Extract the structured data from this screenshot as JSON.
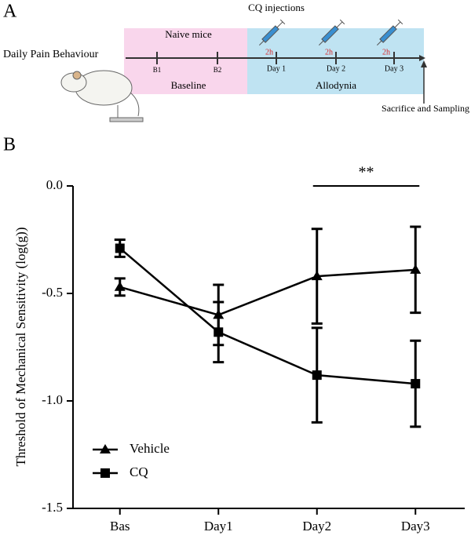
{
  "panel_a": {
    "label": "A",
    "injection_label": "CQ injections",
    "naive_label": "Naive mice",
    "timeline_label": "Daily Pain Behaviour",
    "interval_labels": [
      "2h",
      "2h",
      "2h"
    ],
    "baseline_ticks": [
      "B1",
      "B2"
    ],
    "day_ticks": [
      "Day 1",
      "Day 2",
      "Day 3"
    ],
    "phase_labels": [
      "Baseline",
      "Allodynia"
    ],
    "end_label": "Sacrifice and Sampling"
  },
  "chart_data": {
    "type": "line",
    "panel_label": "B",
    "y_label": "Threshold of Mechanical Sensitivity (log(g))",
    "categories": [
      "Bas",
      "Day1",
      "Day2",
      "Day3"
    ],
    "series": [
      {
        "name": "Vehicle",
        "color": "#000000",
        "marker": "triangle",
        "values": [
          -0.47,
          -0.6,
          -0.42,
          -0.39
        ],
        "errors": [
          0.04,
          0.14,
          0.22,
          0.2
        ]
      },
      {
        "name": "CQ",
        "color": "#000000",
        "marker": "square",
        "values": [
          -0.29,
          -0.68,
          -0.88,
          -0.92
        ],
        "errors": [
          0.04,
          0.14,
          0.22,
          0.2
        ]
      }
    ],
    "ylim": [
      -1.5,
      0
    ],
    "yticks": [
      {
        "value": 0,
        "label": "0.0"
      },
      -0.5,
      {
        "value": -1,
        "label": "-1.0"
      },
      -1.5
    ],
    "annotation": "**",
    "legend": "lower-left"
  }
}
